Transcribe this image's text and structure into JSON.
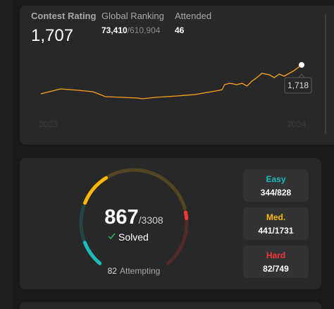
{
  "contest": {
    "rating_label": "Contest Rating",
    "rating": "1,707",
    "ranking_label": "Global Ranking",
    "ranking": "73,410",
    "ranking_total": "/610,904",
    "attended_label": "Attended",
    "attended": "46"
  },
  "rating_chart": {
    "type": "line",
    "color": "#ffa116",
    "x": [
      2022.97,
      2023.05,
      2023.12,
      2023.18,
      2023.23,
      2023.3,
      2023.36,
      2023.38,
      2023.43,
      2023.52,
      2023.59,
      2023.64,
      2023.69,
      2023.7,
      2023.71,
      2023.73,
      2023.76,
      2023.78,
      2023.8,
      2023.82,
      2023.84,
      2023.86,
      2023.89,
      2023.91,
      2023.93,
      2023.95,
      2023.97,
      2023.99,
      2024.02
    ],
    "values": [
      1513,
      1548,
      1538,
      1528,
      1493,
      1488,
      1483,
      1478,
      1488,
      1498,
      1508,
      1523,
      1538,
      1543,
      1578,
      1588,
      1578,
      1588,
      1568,
      1603,
      1628,
      1658,
      1648,
      1628,
      1653,
      1638,
      1658,
      1678,
      1718
    ],
    "xlim": [
      2022.97,
      2024.02
    ],
    "ylim": [
      1470,
      1730
    ],
    "xticks": [
      2023,
      2024
    ],
    "tooltip_label": "1,718"
  },
  "solved": {
    "solved": 867,
    "total_label": "/3308",
    "solved_label": "Solved",
    "attempting": 82,
    "attempting_label": "Attempting",
    "difficulties": [
      {
        "name": "Easy",
        "color": "#1cbaba",
        "solved": 344,
        "total": 828,
        "label": "344/828"
      },
      {
        "name": "Med.",
        "color": "#ffb700",
        "solved": 441,
        "total": 1731,
        "label": "441/1731"
      },
      {
        "name": "Hard",
        "color": "#f63737",
        "solved": 82,
        "total": 749,
        "label": "82/749"
      }
    ]
  }
}
